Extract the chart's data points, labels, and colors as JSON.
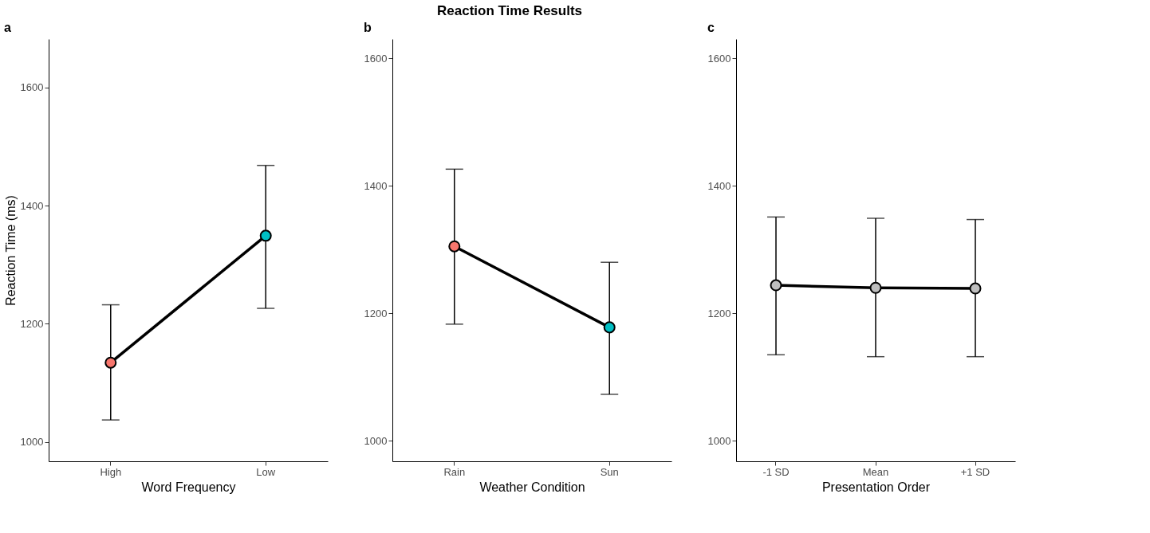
{
  "chart_data": [
    {
      "type": "line",
      "title": "a",
      "annotations": [
        "Reaction Time Results"
      ],
      "xlabel": "Word Frequency",
      "ylabel": "Reaction Time (ms)",
      "categories": [
        "High",
        "Low"
      ],
      "ylim": [
        967,
        1682
      ],
      "yticks": [
        1000,
        1200,
        1400,
        1600
      ],
      "grid": false,
      "marker": "circle",
      "line_style": "solid",
      "colors": [
        "#f8766d",
        "#00bfc4"
      ],
      "series": [
        {
          "color": "#000000",
          "values": [
            1134,
            1349
          ],
          "errors": [
            [
              1037,
              1232
            ],
            [
              1226,
              1468
            ]
          ]
        }
      ]
    },
    {
      "type": "line",
      "title": "b",
      "xlabel": "Weather Condition",
      "categories": [
        "Rain",
        "Sun"
      ],
      "ylim": [
        968,
        1630
      ],
      "yticks": [
        1000,
        1200,
        1400,
        1600
      ],
      "grid": false,
      "marker": "circle",
      "line_style": "solid",
      "colors": [
        "#f8766d",
        "#00bfc4"
      ],
      "series": [
        {
          "color": "#000000",
          "values": [
            1305,
            1178
          ],
          "errors": [
            [
              1183,
              1426
            ],
            [
              1073,
              1280
            ]
          ]
        }
      ]
    },
    {
      "type": "line",
      "title": "c",
      "xlabel": "Presentation Order",
      "categories": [
        "-1 SD",
        "Mean",
        "+1 SD"
      ],
      "ylim": [
        968,
        1630
      ],
      "yticks": [
        1000,
        1200,
        1400,
        1600
      ],
      "grid": false,
      "marker": "circle",
      "line_style": "solid",
      "colors": [
        "#bebebe",
        "#bebebe",
        "#bebebe"
      ],
      "series": [
        {
          "color": "#000000",
          "values": [
            1244,
            1240,
            1239
          ],
          "errors": [
            [
              1135,
              1351
            ],
            [
              1132,
              1349
            ],
            [
              1132,
              1347
            ]
          ]
        }
      ]
    }
  ]
}
